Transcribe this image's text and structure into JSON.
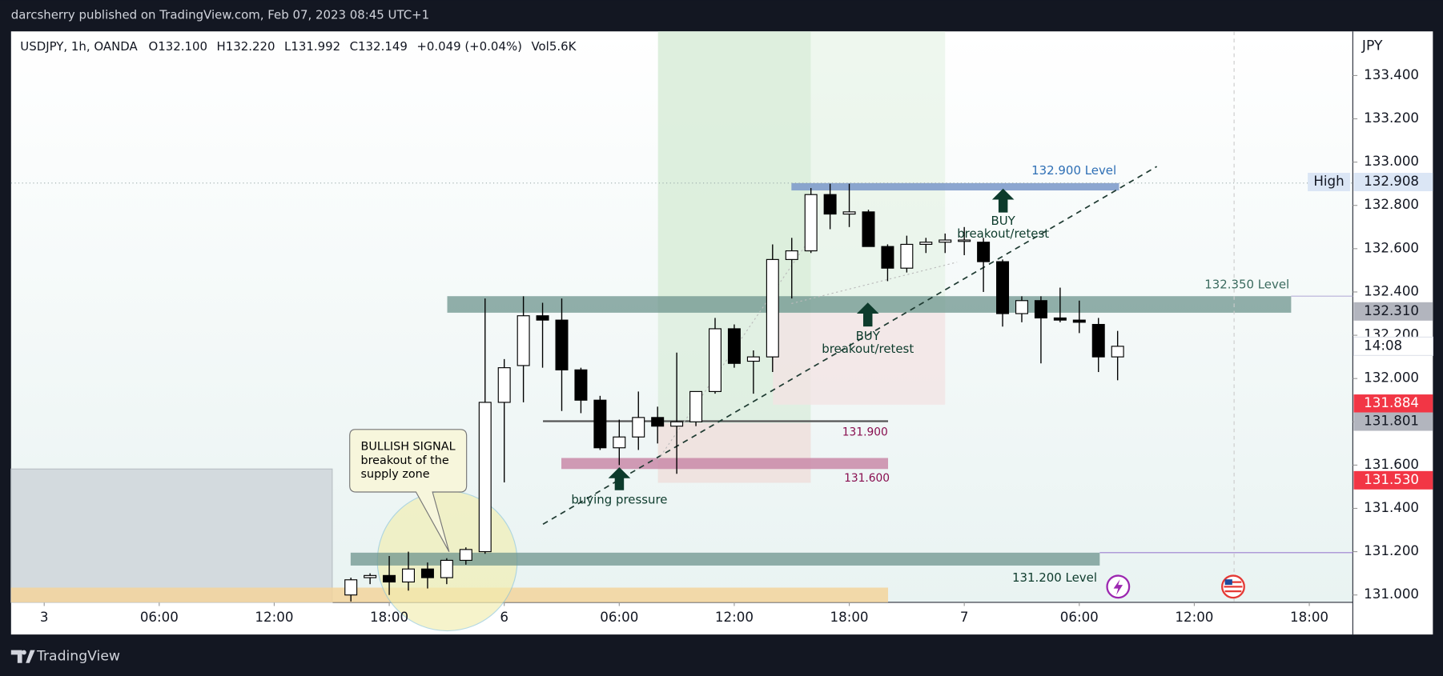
{
  "header": {
    "author_line": "darcsherry published on TradingView.com, Feb 07, 2023 08:45 UTC+1",
    "brand": "TradingView"
  },
  "chart_data": {
    "type": "candlestick",
    "symbol": "USDJPY, 1h, OANDA",
    "legend_values": [
      "O132.100",
      "H132.220",
      "L131.992",
      "C132.149",
      "+0.049 (+0.04%)",
      "Vol5.6K"
    ],
    "currency": "JPY",
    "x": [
      16,
      17,
      18,
      19,
      20,
      21,
      22,
      23,
      24,
      25,
      26,
      27,
      28,
      29,
      30,
      31,
      32,
      33,
      34,
      35,
      36,
      37,
      38,
      39,
      40,
      41,
      42,
      43,
      44,
      45,
      46,
      47,
      48,
      49,
      50,
      51,
      52,
      53,
      54,
      55,
      56
    ],
    "open": [
      131.0,
      131.08,
      131.09,
      131.06,
      131.12,
      131.08,
      131.16,
      131.2,
      131.89,
      132.06,
      132.29,
      132.27,
      132.04,
      131.9,
      131.68,
      131.73,
      131.82,
      131.78,
      131.8,
      131.94,
      132.23,
      132.08,
      132.1,
      132.55,
      132.59,
      132.85,
      132.76,
      132.77,
      132.61,
      132.51,
      132.62,
      132.63,
      132.64,
      132.63,
      132.54,
      132.3,
      132.36,
      132.28,
      132.27,
      132.25,
      132.1
    ],
    "high": [
      131.08,
      131.1,
      131.18,
      131.2,
      131.15,
      131.17,
      131.22,
      132.37,
      132.09,
      132.38,
      132.35,
      132.37,
      132.05,
      131.92,
      131.81,
      131.94,
      131.87,
      132.12,
      131.94,
      132.28,
      132.25,
      132.13,
      132.62,
      132.65,
      132.88,
      132.9,
      132.9,
      132.78,
      132.62,
      132.66,
      132.65,
      132.67,
      132.7,
      132.65,
      132.55,
      132.38,
      132.38,
      132.42,
      132.36,
      132.28,
      132.22
    ],
    "low": [
      130.97,
      131.05,
      131.0,
      131.02,
      131.03,
      131.05,
      131.14,
      131.19,
      131.52,
      131.89,
      132.05,
      131.85,
      131.84,
      131.67,
      131.6,
      131.67,
      131.7,
      131.56,
      131.78,
      131.93,
      132.05,
      131.93,
      132.03,
      132.37,
      132.58,
      132.69,
      132.7,
      132.61,
      132.45,
      132.49,
      132.58,
      132.58,
      132.57,
      132.4,
      132.24,
      132.26,
      132.07,
      132.26,
      132.21,
      132.03,
      131.992
    ],
    "close": [
      131.07,
      131.09,
      131.06,
      131.12,
      131.08,
      131.16,
      131.21,
      131.89,
      132.05,
      132.29,
      132.27,
      132.04,
      131.9,
      131.68,
      131.73,
      131.82,
      131.78,
      131.8,
      131.94,
      132.23,
      132.07,
      132.1,
      132.55,
      132.59,
      132.85,
      132.76,
      132.77,
      132.61,
      132.51,
      132.62,
      132.63,
      132.64,
      132.64,
      132.54,
      132.3,
      132.36,
      132.28,
      132.27,
      132.26,
      132.1,
      132.149
    ],
    "up_color": "#ffffff",
    "down_color": "#000000",
    "xlim": [
      -1.73,
      68.27
    ],
    "xticks": [
      {
        "value": 0,
        "label": "3"
      },
      {
        "value": 6,
        "label": "06:00"
      },
      {
        "value": 12,
        "label": "12:00"
      },
      {
        "value": 18,
        "label": "18:00"
      },
      {
        "value": 24,
        "label": "6"
      },
      {
        "value": 30,
        "label": "06:00"
      },
      {
        "value": 36,
        "label": "12:00"
      },
      {
        "value": 42,
        "label": "18:00"
      },
      {
        "value": 48,
        "label": "7"
      },
      {
        "value": 54,
        "label": "06:00"
      },
      {
        "value": 60,
        "label": "12:00"
      },
      {
        "value": 66,
        "label": "18:00"
      }
    ],
    "ylim": [
      130.966,
      133.604
    ],
    "yticks": [
      {
        "value": 131.0,
        "label": "131.000"
      },
      {
        "value": 131.2,
        "label": "131.200"
      },
      {
        "value": 131.4,
        "label": "131.400"
      },
      {
        "value": 131.6,
        "label": "131.600"
      },
      {
        "value": 131.8,
        "label": "131.800"
      },
      {
        "value": 132.0,
        "label": "132.000"
      },
      {
        "value": 132.2,
        "label": "132.200"
      },
      {
        "value": 132.4,
        "label": "132.400"
      },
      {
        "value": 132.6,
        "label": "132.600"
      },
      {
        "value": 132.8,
        "label": "132.800"
      },
      {
        "value": 133.0,
        "label": "133.000"
      },
      {
        "value": 133.2,
        "label": "133.200"
      },
      {
        "value": 133.4,
        "label": "133.400"
      }
    ],
    "price_tags": [
      {
        "value": 132.908,
        "label": "132.908",
        "color": "#dbe6f5",
        "text_color": "#131722"
      },
      {
        "value": 132.31,
        "label": "132.310",
        "color": "#b2b5be",
        "text_color": "#131722"
      },
      {
        "value": 131.884,
        "label": "131.884",
        "color": "#f23645",
        "text_color": "#ffffff"
      },
      {
        "value": 131.801,
        "label": "131.801",
        "color": "#b2b5be",
        "text_color": "#131722"
      },
      {
        "value": 131.53,
        "label": "131.530",
        "color": "#f23645",
        "text_color": "#ffffff"
      }
    ],
    "high_marker": "High",
    "countdown": "14:08",
    "annotations": {
      "signal": [
        "BULLISH SIGNAL",
        "breakout of the",
        "supply zone"
      ],
      "buy_1": [
        "BUY",
        "breakout/retest"
      ],
      "buy_2": [
        "BUY",
        "breakout/retest"
      ],
      "buying_pressure": "buying pressure",
      "level_132_9": "132.900 Level",
      "level_132_35": "132.350 Level",
      "level_131_2": "131.200 Level",
      "line_131_9": "131.900",
      "line_131_6": "131.600"
    }
  }
}
